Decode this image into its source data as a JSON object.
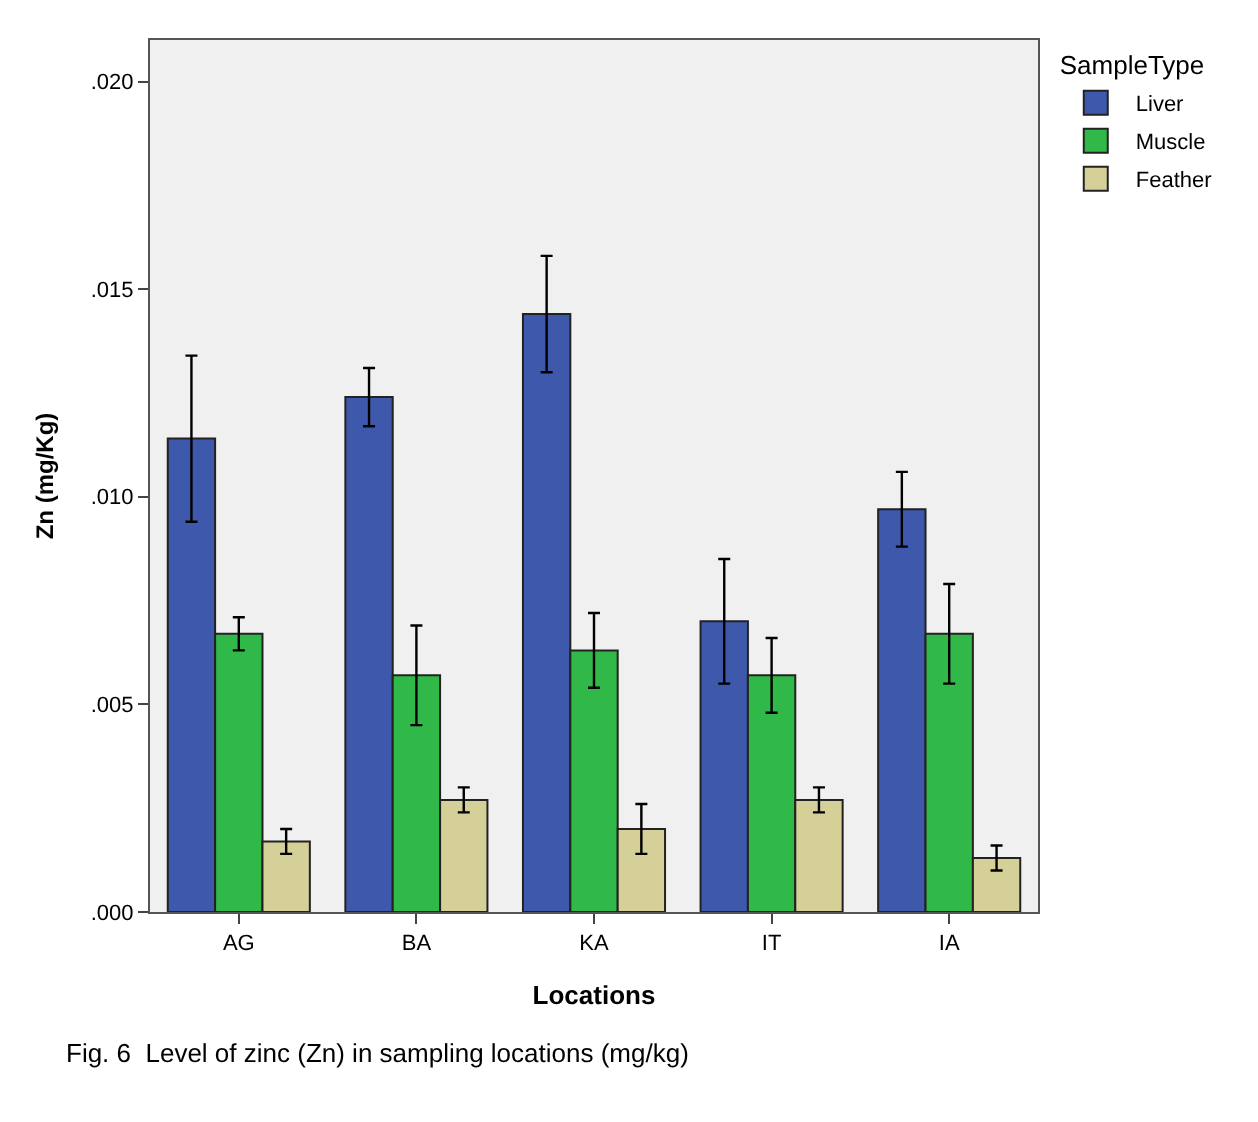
{
  "chart_data": {
    "type": "bar",
    "xlabel": "Locations",
    "ylabel": "Zn (mg/Kg)",
    "legend_title": "SampleType",
    "legend": "top right",
    "categories": [
      "AG",
      "BA",
      "KA",
      "IT",
      "IA"
    ],
    "series": [
      {
        "name": "Liver",
        "color": "#3e58ac",
        "values": [
          0.0114,
          0.0124,
          0.0144,
          0.007,
          0.0097
        ],
        "errors": [
          0.002,
          0.0007,
          0.0014,
          0.0015,
          0.0009
        ]
      },
      {
        "name": "Muscle",
        "color": "#30b848",
        "values": [
          0.0067,
          0.0057,
          0.0063,
          0.0057,
          0.0067
        ],
        "errors": [
          0.0004,
          0.0012,
          0.0009,
          0.0009,
          0.0012
        ]
      },
      {
        "name": "Feather",
        "color": "#d4d098",
        "values": [
          0.0017,
          0.0027,
          0.002,
          0.0027,
          0.0013
        ],
        "errors": [
          0.0003,
          0.0003,
          0.0006,
          0.0003,
          0.0003
        ]
      }
    ],
    "ylim": [
      0,
      0.021
    ],
    "yticks": [
      {
        "value": 0,
        "label": ".000"
      },
      {
        "value": 0.005,
        "label": ".005"
      },
      {
        "value": 0.01,
        "label": ".010"
      },
      {
        "value": 0.015,
        "label": ".015"
      },
      {
        "value": 0.02,
        "label": ".020"
      }
    ],
    "grid": false,
    "annotations": [
      "Fig. 6  Level of zinc (Zn) in sampling locations (mg/kg)"
    ]
  }
}
